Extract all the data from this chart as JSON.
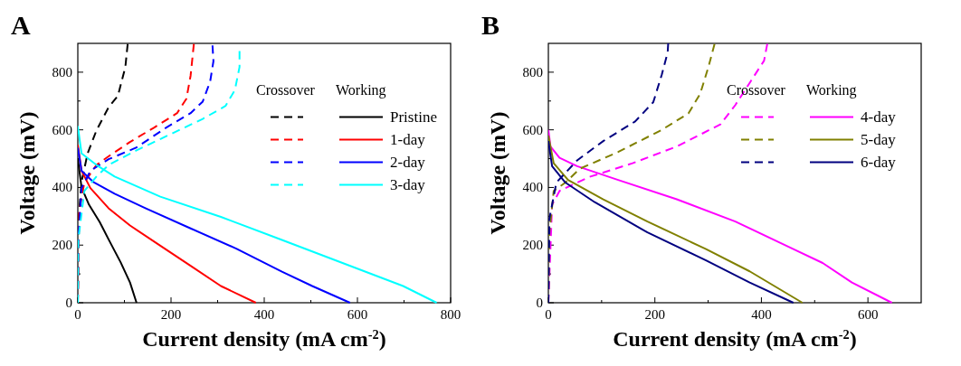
{
  "chart_data": [
    {
      "type": "line",
      "title": "A",
      "xlabel": "Current density (mA cm$^{-2}$)",
      "ylabel": "Voltage (mV)",
      "annotations": [
        "Crossover",
        "Working"
      ],
      "legend": "right",
      "xlim": [
        0,
        800
      ],
      "ylim": [
        0,
        900
      ],
      "xticks": [
        0,
        {
          "value": 100,
          "label": null
        },
        200,
        {
          "value": 300,
          "label": null
        },
        400,
        {
          "value": 500,
          "label": null
        },
        600,
        {
          "value": 700,
          "label": null
        },
        800
      ],
      "yticks": [
        0,
        {
          "value": 100,
          "label": null
        },
        200,
        {
          "value": 300,
          "label": null
        },
        400,
        {
          "value": 500,
          "label": null
        },
        600,
        {
          "value": 700,
          "label": null
        },
        800
      ],
      "series": [
        {
          "color": "#000000",
          "line_style": "dashed",
          "x": [
            0,
            2,
            8,
            21,
            40,
            66,
            86,
            102,
            107
          ],
          "values": [
            0,
            300,
            420,
            518,
            598,
            678,
            718,
            818,
            898
          ]
        },
        {
          "name": "Pristine",
          "color": "#000000",
          "line_style": "solid",
          "x": [
            0,
            8,
            24,
            47,
            66,
            92,
            112,
            126
          ],
          "values": [
            500,
            400,
            340,
            280,
            220,
            140,
            70,
            0
          ]
        },
        {
          "color": "#ff0000",
          "line_style": "dashed",
          "x": [
            0,
            3,
            14,
            40,
            66,
            112,
            164,
            213,
            233,
            242,
            249
          ],
          "values": [
            0,
            318,
            418,
            478,
            508,
            558,
            608,
            658,
            708,
            788,
            898
          ]
        },
        {
          "name": "1-day",
          "color": "#ff0000",
          "line_style": "solid",
          "x": [
            0,
            8,
            27,
            66,
            112,
            177,
            242,
            307,
            382
          ],
          "values": [
            548,
            458,
            398,
            328,
            268,
            198,
            128,
            58,
            0
          ]
        },
        {
          "color": "#0000ff",
          "line_style": "dashed",
          "x": [
            0,
            1,
            8,
            27,
            66,
            125,
            190,
            242,
            268,
            284,
            291,
            289
          ],
          "values": [
            0,
            218,
            398,
            458,
            498,
            538,
            608,
            658,
            698,
            768,
            838,
            893
          ]
        },
        {
          "name": "2-day",
          "color": "#0000ff",
          "line_style": "solid",
          "x": [
            0,
            8,
            34,
            79,
            145,
            242,
            340,
            438,
            503,
            584
          ],
          "values": [
            538,
            458,
            418,
            378,
            328,
            258,
            188,
            108,
            58,
            0
          ]
        },
        {
          "color": "#00ffff",
          "line_style": "dashed",
          "x": [
            0,
            1,
            14,
            40,
            66,
            125,
            190,
            268,
            317,
            337,
            347,
            347
          ],
          "values": [
            0,
            218,
            388,
            438,
            478,
            528,
            578,
            638,
            683,
            738,
            818,
            873
          ]
        },
        {
          "name": "3-day",
          "color": "#00ffff",
          "line_style": "solid",
          "x": [
            0,
            8,
            40,
            79,
            177,
            307,
            438,
            568,
            698,
            770
          ],
          "values": [
            613,
            518,
            478,
            438,
            368,
            298,
            218,
            138,
            58,
            0
          ]
        }
      ]
    },
    {
      "type": "line",
      "title": "B",
      "xlabel": "Current density (mA cm$^{-2}$)",
      "ylabel": "Voltage (mV)",
      "annotations": [
        "Crossover",
        "Working"
      ],
      "legend": "right",
      "xlim": [
        0,
        700
      ],
      "ylim": [
        0,
        900
      ],
      "xticks": [
        0,
        {
          "value": 100,
          "label": null
        },
        200,
        {
          "value": 300,
          "label": null
        },
        400,
        {
          "value": 500,
          "label": null
        },
        600
      ],
      "yticks": [
        0,
        {
          "value": 100,
          "label": null
        },
        200,
        {
          "value": 300,
          "label": null
        },
        400,
        {
          "value": 500,
          "label": null
        },
        600,
        {
          "value": 700,
          "label": null
        },
        800
      ],
      "series": [
        {
          "color": "#ff00ff",
          "line_style": "dashed",
          "x": [
            0,
            7,
            21,
            76,
            158,
            241,
            323,
            351,
            378,
            405,
            411
          ],
          "values": [
            0,
            340,
            388,
            436,
            484,
            542,
            619,
            686,
            763,
            840,
            898
          ]
        },
        {
          "name": "4-day",
          "color": "#ff00ff",
          "line_style": "solid",
          "x": [
            0,
            4,
            21,
            54,
            131,
            241,
            351,
            460,
            515,
            570,
            645
          ],
          "values": [
            600,
            542,
            503,
            474,
            426,
            359,
            282,
            186,
            138,
            70,
            0
          ]
        },
        {
          "color": "#808000",
          "line_style": "dashed",
          "x": [
            0,
            2,
            10,
            32,
            59,
            131,
            213,
            263,
            285,
            301,
            312
          ],
          "values": [
            0,
            244,
            388,
            417,
            465,
            523,
            600,
            657,
            725,
            821,
            898
          ]
        },
        {
          "name": "5-day",
          "color": "#808000",
          "line_style": "solid",
          "x": [
            0,
            10,
            37,
            103,
            186,
            296,
            378,
            477
          ],
          "values": [
            580,
            484,
            426,
            359,
            282,
            186,
            109,
            0
          ]
        },
        {
          "color": "#000080",
          "line_style": "dashed",
          "x": [
            0,
            2,
            15,
            54,
            103,
            163,
            197,
            213,
            224,
            225
          ],
          "values": [
            0,
            292,
            417,
            494,
            561,
            629,
            696,
            792,
            869,
            900
          ]
        },
        {
          "name": "6-day",
          "color": "#000080",
          "line_style": "solid",
          "x": [
            0,
            7,
            32,
            87,
            186,
            296,
            378,
            460
          ],
          "values": [
            561,
            474,
            417,
            349,
            244,
            147,
            70,
            0
          ]
        }
      ]
    }
  ]
}
